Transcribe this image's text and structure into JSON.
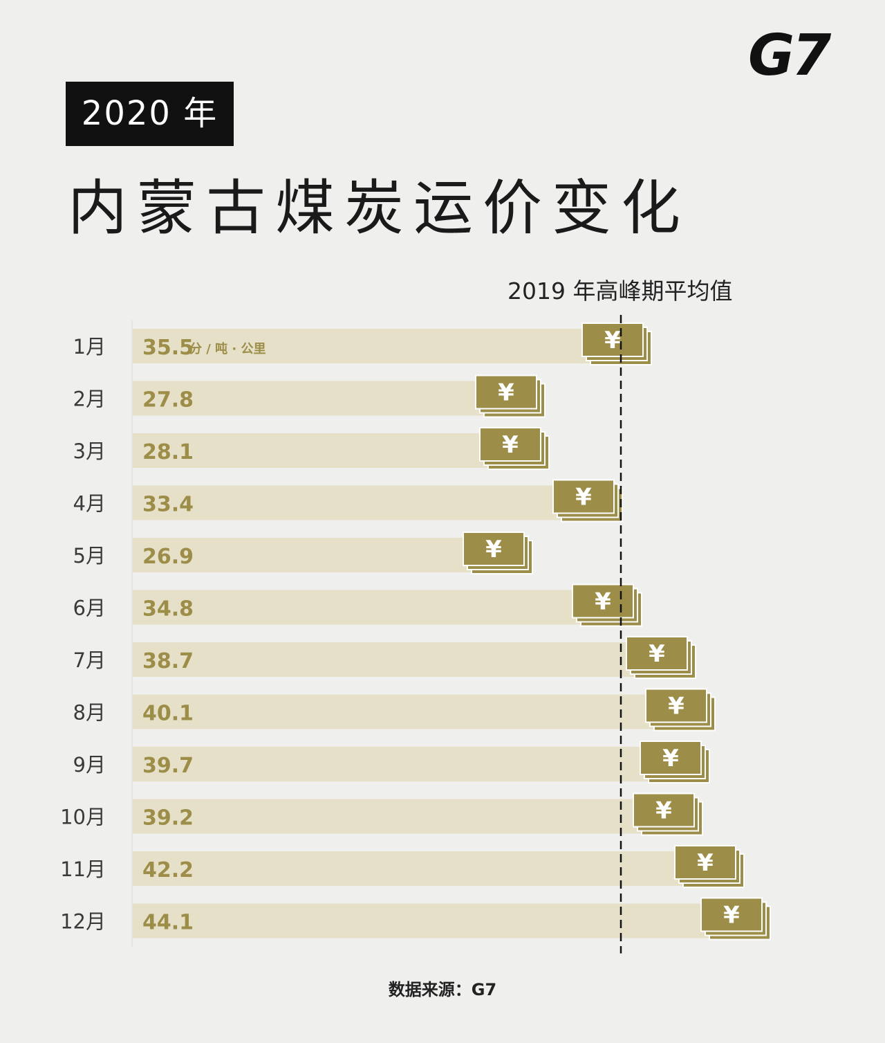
{
  "logo": "G7",
  "year_badge": "2020 年",
  "title": "内蒙古煤炭运价变化",
  "source": "数据来源：G7",
  "colors": {
    "bar": "#e6e0c8",
    "value_text": "#9c8d48",
    "icon_fill": "#9c8d48",
    "icon_border": "#ffffff",
    "reference_line": "#111111"
  },
  "chart_data": {
    "type": "bar",
    "orientation": "horizontal",
    "categories": [
      "1月",
      "2月",
      "3月",
      "4月",
      "5月",
      "6月",
      "7月",
      "8月",
      "9月",
      "10月",
      "11月",
      "12月"
    ],
    "values": [
      35.5,
      27.8,
      28.1,
      33.4,
      26.9,
      34.8,
      38.7,
      40.1,
      39.7,
      39.2,
      42.2,
      44.1
    ],
    "value_labels": [
      "35.5",
      "27.8",
      "28.1",
      "33.4",
      "26.9",
      "34.8",
      "38.7",
      "40.1",
      "39.7",
      "39.2",
      "42.2",
      "44.1"
    ],
    "unit": "分 / 吨 · 公里",
    "icon_symbol": "¥",
    "reference_line": {
      "label": "2019 年高峰期平均值",
      "value": 35.3,
      "style": "dashed"
    }
  }
}
